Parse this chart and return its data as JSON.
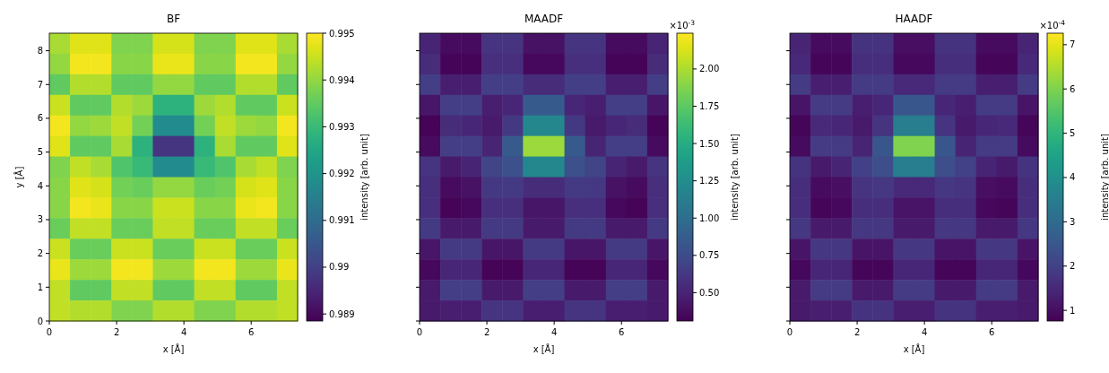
{
  "chart_data": [
    {
      "type": "heatmap",
      "title": "BF",
      "xlabel": "x [Å]",
      "ylabel": "y [Å]",
      "clabel": "intensity [arb. unit]",
      "xlim": [
        0,
        7.38
      ],
      "ylim": [
        0,
        8.52
      ],
      "xticks": [
        0,
        2,
        4,
        6
      ],
      "yticks": [
        0,
        1,
        2,
        3,
        4,
        5,
        6,
        7,
        8
      ],
      "clim": [
        0.98885,
        0.995
      ],
      "cticks": [
        0.989,
        0.99,
        0.991,
        0.992,
        0.993,
        0.994,
        0.995
      ],
      "cells": [
        [
          0.9942,
          0.9947,
          0.9947,
          0.9938,
          0.9938,
          0.9946,
          0.9946,
          0.9938,
          0.9938,
          0.9947,
          0.9947,
          0.9942
        ],
        [
          0.994,
          0.9949,
          0.9949,
          0.9939,
          0.9939,
          0.9948,
          0.9948,
          0.9939,
          0.9939,
          0.9949,
          0.9949,
          0.994
        ],
        [
          0.9935,
          0.9943,
          0.9943,
          0.9935,
          0.9935,
          0.994,
          0.994,
          0.9935,
          0.9935,
          0.9943,
          0.9943,
          0.9935
        ],
        [
          0.9945,
          0.9935,
          0.9935,
          0.9943,
          0.9941,
          0.9928,
          0.9928,
          0.9941,
          0.9943,
          0.9935,
          0.9935,
          0.9945
        ],
        [
          0.9949,
          0.994,
          0.9941,
          0.9944,
          0.9937,
          0.9918,
          0.9918,
          0.9937,
          0.9944,
          0.9941,
          0.994,
          0.9949
        ],
        [
          0.9947,
          0.9935,
          0.9935,
          0.9942,
          0.9928,
          0.9898,
          0.9898,
          0.9928,
          0.9942,
          0.9935,
          0.9935,
          0.9947
        ],
        [
          0.9938,
          0.9944,
          0.9942,
          0.9933,
          0.993,
          0.9918,
          0.9918,
          0.993,
          0.9933,
          0.9942,
          0.9944,
          0.9938
        ],
        [
          0.9939,
          0.9947,
          0.9946,
          0.9937,
          0.9936,
          0.994,
          0.994,
          0.9936,
          0.9937,
          0.9946,
          0.9947,
          0.9939
        ],
        [
          0.9939,
          0.9949,
          0.9948,
          0.9939,
          0.9939,
          0.9945,
          0.9945,
          0.9939,
          0.9939,
          0.9948,
          0.9949,
          0.9939
        ],
        [
          0.9936,
          0.9944,
          0.9944,
          0.9936,
          0.9936,
          0.9944,
          0.9944,
          0.9936,
          0.9936,
          0.9944,
          0.9944,
          0.9936
        ],
        [
          0.9945,
          0.9936,
          0.9936,
          0.9945,
          0.9945,
          0.9936,
          0.9936,
          0.9945,
          0.9945,
          0.9936,
          0.9936,
          0.9945
        ],
        [
          0.9948,
          0.9941,
          0.9941,
          0.9949,
          0.9949,
          0.9941,
          0.9941,
          0.9949,
          0.9949,
          0.9941,
          0.9941,
          0.9948
        ],
        [
          0.9944,
          0.9935,
          0.9935,
          0.9944,
          0.9944,
          0.9935,
          0.9935,
          0.9944,
          0.9944,
          0.9935,
          0.9935,
          0.9944
        ],
        [
          0.9944,
          0.9943,
          0.9943,
          0.9938,
          0.9938,
          0.9943,
          0.9943,
          0.9938,
          0.9938,
          0.9943,
          0.9943,
          0.9944
        ]
      ]
    },
    {
      "type": "heatmap",
      "title": "MAADF",
      "xlabel": "x [Å]",
      "clabel": "intensity [arb. unit]",
      "annotations": [
        "×10$^{-3}$"
      ],
      "tick_labels": "x",
      "xlim": [
        0,
        7.38
      ],
      "ylim": [
        0,
        8.52
      ],
      "xticks": [
        0,
        2,
        4,
        6
      ],
      "yticks": [
        0,
        1,
        2,
        3,
        4,
        5,
        6,
        7,
        8
      ],
      "clim": [
        0.31,
        2.24
      ],
      "cticks": [
        {
          "value": 0.5,
          "label": "0.50"
        },
        {
          "value": 0.75,
          "label": "0.75"
        },
        {
          "value": 1,
          "label": "1.00"
        },
        {
          "value": 1.25,
          "label": "1.25"
        },
        {
          "value": 1.5,
          "label": "1.50"
        },
        {
          "value": 1.75,
          "label": "1.75"
        },
        {
          "value": 2,
          "label": "2.00"
        }
      ],
      "cells": [
        [
          0.5,
          0.37,
          0.37,
          0.6,
          0.6,
          0.4,
          0.4,
          0.6,
          0.6,
          0.37,
          0.37,
          0.5
        ],
        [
          0.55,
          0.33,
          0.33,
          0.57,
          0.57,
          0.35,
          0.35,
          0.57,
          0.57,
          0.33,
          0.33,
          0.55
        ],
        [
          0.66,
          0.47,
          0.47,
          0.66,
          0.66,
          0.55,
          0.55,
          0.66,
          0.66,
          0.47,
          0.47,
          0.66
        ],
        [
          0.42,
          0.66,
          0.66,
          0.47,
          0.52,
          0.85,
          0.85,
          0.52,
          0.47,
          0.66,
          0.66,
          0.42
        ],
        [
          0.33,
          0.55,
          0.52,
          0.44,
          0.62,
          1.2,
          1.2,
          0.62,
          0.44,
          0.52,
          0.55,
          0.33
        ],
        [
          0.37,
          0.66,
          0.66,
          0.5,
          0.85,
          1.95,
          1.95,
          0.85,
          0.5,
          0.66,
          0.66,
          0.37
        ],
        [
          0.6,
          0.44,
          0.5,
          0.7,
          0.78,
          1.2,
          1.2,
          0.78,
          0.7,
          0.5,
          0.44,
          0.6
        ],
        [
          0.57,
          0.37,
          0.4,
          0.62,
          0.64,
          0.55,
          0.55,
          0.64,
          0.62,
          0.4,
          0.37,
          0.57
        ],
        [
          0.57,
          0.33,
          0.35,
          0.57,
          0.57,
          0.42,
          0.42,
          0.57,
          0.57,
          0.35,
          0.33,
          0.57
        ],
        [
          0.64,
          0.44,
          0.44,
          0.64,
          0.64,
          0.44,
          0.44,
          0.64,
          0.64,
          0.44,
          0.44,
          0.64
        ],
        [
          0.42,
          0.64,
          0.64,
          0.42,
          0.42,
          0.64,
          0.64,
          0.42,
          0.42,
          0.64,
          0.64,
          0.42
        ],
        [
          0.35,
          0.52,
          0.52,
          0.33,
          0.33,
          0.52,
          0.52,
          0.33,
          0.33,
          0.52,
          0.52,
          0.35
        ],
        [
          0.44,
          0.66,
          0.66,
          0.44,
          0.44,
          0.66,
          0.66,
          0.44,
          0.44,
          0.66,
          0.66,
          0.44
        ],
        [
          0.44,
          0.47,
          0.47,
          0.6,
          0.6,
          0.47,
          0.47,
          0.6,
          0.6,
          0.47,
          0.47,
          0.44
        ]
      ]
    },
    {
      "type": "heatmap",
      "title": "HAADF",
      "xlabel": "x [Å]",
      "clabel": "intensity [arb. unit]",
      "annotations": [
        "×10$^{-4}$"
      ],
      "tick_labels": "x",
      "xlim": [
        0,
        7.38
      ],
      "ylim": [
        0,
        8.52
      ],
      "xticks": [
        0,
        2,
        4,
        6
      ],
      "yticks": [
        0,
        1,
        2,
        3,
        4,
        5,
        6,
        7,
        8
      ],
      "clim": [
        0.76,
        7.26
      ],
      "cticks": [
        1,
        2,
        3,
        4,
        5,
        6,
        7
      ],
      "cells": [
        [
          1.4,
          0.95,
          0.95,
          1.7,
          1.7,
          1.0,
          1.0,
          1.7,
          1.7,
          0.95,
          0.95,
          1.4
        ],
        [
          1.5,
          0.85,
          0.85,
          1.6,
          1.6,
          0.9,
          0.9,
          1.6,
          1.6,
          0.85,
          0.85,
          1.5
        ],
        [
          1.9,
          1.3,
          1.3,
          1.9,
          1.9,
          1.5,
          1.5,
          1.9,
          1.9,
          1.3,
          1.3,
          1.9
        ],
        [
          1.1,
          1.9,
          1.9,
          1.3,
          1.45,
          2.5,
          2.5,
          1.45,
          1.3,
          1.9,
          1.9,
          1.1
        ],
        [
          0.85,
          1.5,
          1.45,
          1.2,
          1.75,
          3.5,
          3.5,
          1.75,
          1.2,
          1.45,
          1.5,
          0.85
        ],
        [
          0.95,
          1.9,
          1.9,
          1.4,
          2.5,
          6.0,
          6.0,
          2.5,
          1.4,
          1.9,
          1.9,
          0.95
        ],
        [
          1.7,
          1.2,
          1.4,
          2.0,
          2.3,
          3.5,
          3.5,
          2.3,
          2.0,
          1.4,
          1.2,
          1.7
        ],
        [
          1.6,
          0.95,
          1.0,
          1.75,
          1.8,
          1.5,
          1.5,
          1.8,
          1.75,
          1.0,
          0.95,
          1.6
        ],
        [
          1.6,
          0.85,
          0.9,
          1.6,
          1.6,
          1.1,
          1.1,
          1.6,
          1.6,
          0.9,
          0.85,
          1.6
        ],
        [
          1.8,
          1.2,
          1.2,
          1.8,
          1.8,
          1.2,
          1.2,
          1.8,
          1.8,
          1.2,
          1.2,
          1.8
        ],
        [
          1.1,
          1.8,
          1.8,
          1.1,
          1.1,
          1.8,
          1.8,
          1.1,
          1.1,
          1.8,
          1.8,
          1.1
        ],
        [
          0.9,
          1.45,
          1.45,
          0.85,
          0.85,
          1.45,
          1.45,
          0.85,
          0.85,
          1.45,
          1.45,
          0.9
        ],
        [
          1.2,
          1.9,
          1.9,
          1.2,
          1.2,
          1.9,
          1.9,
          1.2,
          1.2,
          1.9,
          1.9,
          1.2
        ],
        [
          1.2,
          1.3,
          1.3,
          1.7,
          1.7,
          1.3,
          1.3,
          1.7,
          1.7,
          1.3,
          1.3,
          1.2
        ]
      ]
    }
  ]
}
